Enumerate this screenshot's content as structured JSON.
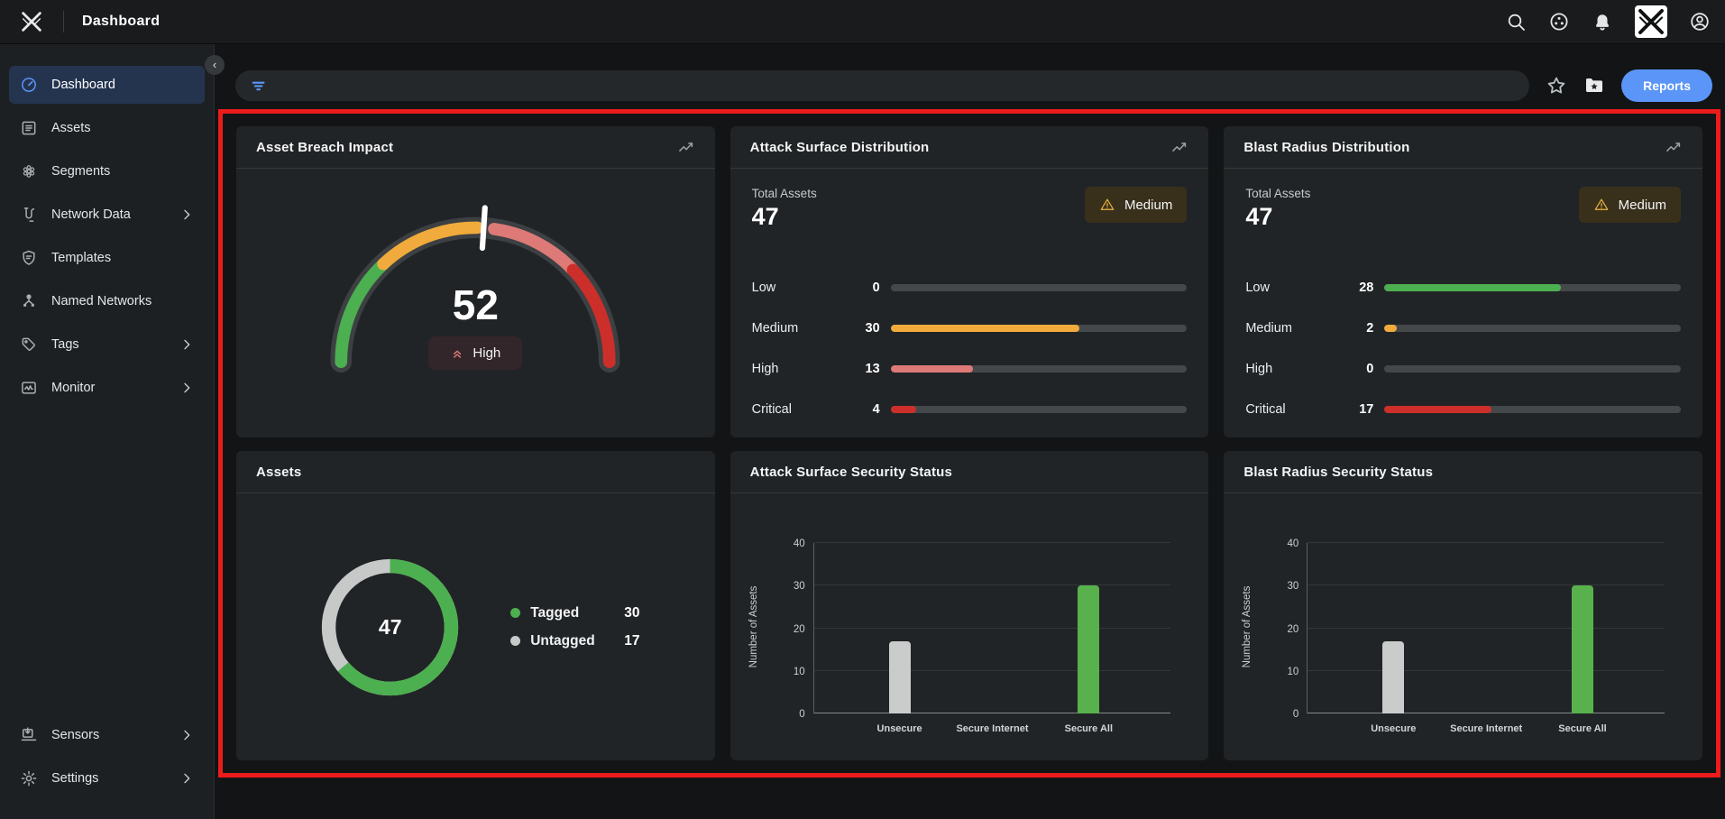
{
  "topbar": {
    "title": "Dashboard"
  },
  "sidebar": {
    "items": [
      {
        "label": "Dashboard",
        "icon": "dashboard",
        "selected": true,
        "chevron": false
      },
      {
        "label": "Assets",
        "icon": "assets",
        "selected": false,
        "chevron": false
      },
      {
        "label": "Segments",
        "icon": "segments",
        "selected": false,
        "chevron": false
      },
      {
        "label": "Network Data",
        "icon": "network-data",
        "selected": false,
        "chevron": true
      },
      {
        "label": "Templates",
        "icon": "templates",
        "selected": false,
        "chevron": false
      },
      {
        "label": "Named Networks",
        "icon": "named-networks",
        "selected": false,
        "chevron": false
      },
      {
        "label": "Tags",
        "icon": "tags",
        "selected": false,
        "chevron": true
      },
      {
        "label": "Monitor",
        "icon": "monitor",
        "selected": false,
        "chevron": true
      }
    ],
    "bottom_items": [
      {
        "label": "Sensors",
        "icon": "sensors",
        "selected": false,
        "chevron": true
      },
      {
        "label": "Settings",
        "icon": "settings",
        "selected": false,
        "chevron": true
      }
    ]
  },
  "toolbar": {
    "reports_label": "Reports"
  },
  "colors": {
    "accent_blue": "#5b95f7",
    "green": "#4caf50",
    "amber": "#f0ab3c",
    "salmon": "#dd7a78",
    "red": "#cc2f2a",
    "gray": "#c6c9c7",
    "frame_red": "#ec1c1c"
  },
  "chart_data": [
    {
      "type": "gauge",
      "title": "Asset Breach Impact",
      "value": 52,
      "range": [
        0,
        100
      ],
      "label": "High",
      "segments": [
        {
          "name": "low",
          "from": 0,
          "to": 26,
          "color": "#4caf50"
        },
        {
          "name": "medium",
          "from": 26,
          "to": 50.5,
          "color": "#f0ab3c"
        },
        {
          "name": "high",
          "from": 54.5,
          "to": 76,
          "color": "#dd7a78"
        },
        {
          "name": "critical",
          "from": 76,
          "to": 100,
          "color": "#cc2f2a"
        }
      ]
    },
    {
      "type": "bar",
      "variant": "horizontal",
      "title": "Attack Surface Distribution",
      "total_label": "Total Assets",
      "total": 47,
      "overall_severity": "Medium",
      "categories": [
        "Low",
        "Medium",
        "High",
        "Critical"
      ],
      "values": [
        0,
        30,
        13,
        4
      ],
      "colors": [
        "#4caf50",
        "#f0ab3c",
        "#dd7a78",
        "#cc2f2a"
      ],
      "max": 47
    },
    {
      "type": "bar",
      "variant": "horizontal",
      "title": "Blast Radius Distribution",
      "total_label": "Total Assets",
      "total": 47,
      "overall_severity": "Medium",
      "categories": [
        "Low",
        "Medium",
        "High",
        "Critical"
      ],
      "values": [
        28,
        2,
        0,
        17
      ],
      "colors": [
        "#4caf50",
        "#f0ab3c",
        "#dd7a78",
        "#cc2f2a"
      ],
      "max": 47
    },
    {
      "type": "pie",
      "variant": "donut",
      "title": "Assets",
      "center": 47,
      "slices": [
        {
          "label": "Tagged",
          "value": 30,
          "color": "#4caf50"
        },
        {
          "label": "Untagged",
          "value": 17,
          "color": "#c6c9c7"
        }
      ]
    },
    {
      "type": "bar",
      "title": "Attack Surface Security Status",
      "categories": [
        "Unsecure",
        "Secure Internet",
        "Secure All"
      ],
      "values": [
        17,
        0,
        30
      ],
      "colors": [
        "#c9cccb",
        "#58b14d",
        "#58b14d"
      ],
      "ylabel": "Number of Assets",
      "yticks": [
        0,
        10,
        20,
        30,
        40
      ],
      "ylim": [
        0,
        40
      ],
      "grid": true,
      "legend_position": "none"
    },
    {
      "type": "bar",
      "title": "Blast Radius Security Status",
      "categories": [
        "Unsecure",
        "Secure Internet",
        "Secure All"
      ],
      "values": [
        17,
        0,
        30
      ],
      "colors": [
        "#c9cccb",
        "#58b14d",
        "#58b14d"
      ],
      "ylabel": "Number of Assets",
      "yticks": [
        0,
        10,
        20,
        30,
        40
      ],
      "ylim": [
        0,
        40
      ],
      "grid": true,
      "legend_position": "none"
    }
  ]
}
